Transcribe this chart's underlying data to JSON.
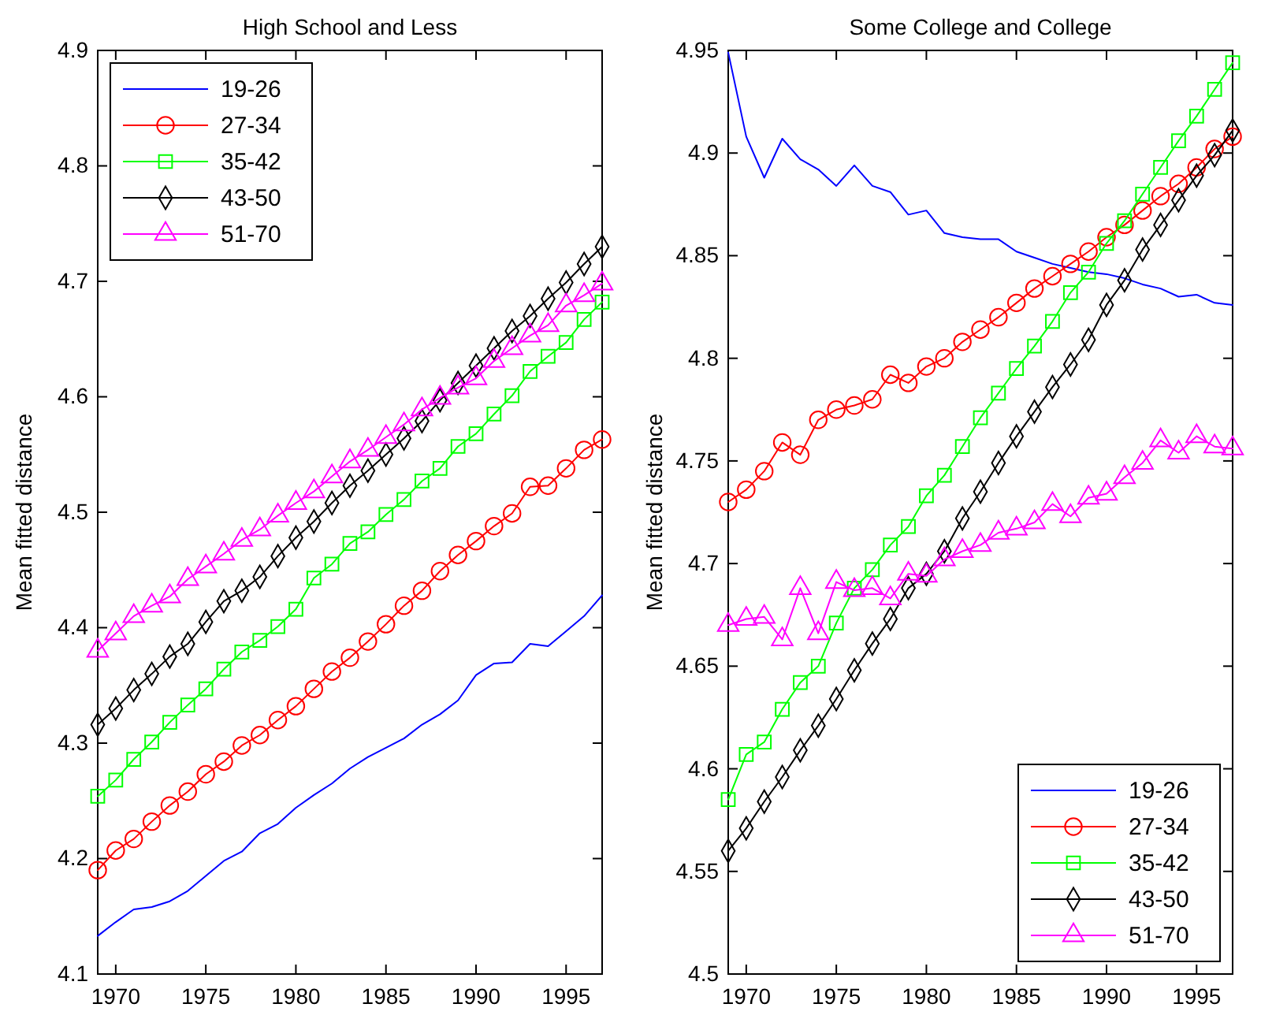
{
  "chart_data": [
    {
      "type": "line",
      "title": "High School and Less",
      "ylabel": "Mean fitted distance",
      "legend": "top left",
      "xlim": [
        1969,
        1997
      ],
      "xticks": [
        1970,
        1975,
        1980,
        1985,
        1990,
        1995
      ],
      "ylim": [
        4.1,
        4.9
      ],
      "yticks": [
        4.1,
        4.2,
        4.3,
        4.4,
        4.5,
        4.6,
        4.7,
        4.8,
        4.9
      ],
      "x": [
        1969,
        1970,
        1971,
        1972,
        1973,
        1974,
        1975,
        1976,
        1977,
        1978,
        1979,
        1980,
        1981,
        1982,
        1983,
        1984,
        1985,
        1986,
        1987,
        1988,
        1989,
        1990,
        1991,
        1992,
        1993,
        1994,
        1995,
        1996,
        1997
      ],
      "series": [
        {
          "name": "19-26",
          "color": "#0000ff",
          "marker": "none",
          "values": [
            4.133,
            4.145,
            4.156,
            4.158,
            4.163,
            4.172,
            4.185,
            4.198,
            4.206,
            4.222,
            4.23,
            4.244,
            4.255,
            4.265,
            4.278,
            4.288,
            4.296,
            4.304,
            4.316,
            4.325,
            4.337,
            4.359,
            4.369,
            4.37,
            4.386,
            4.384,
            4.397,
            4.41,
            4.428
          ]
        },
        {
          "name": "27-34",
          "color": "#ff0000",
          "marker": "circle",
          "values": [
            4.19,
            4.207,
            4.217,
            4.232,
            4.246,
            4.258,
            4.273,
            4.284,
            4.298,
            4.307,
            4.32,
            4.332,
            4.347,
            4.362,
            4.374,
            4.388,
            4.403,
            4.419,
            4.432,
            4.449,
            4.463,
            4.475,
            4.488,
            4.499,
            4.522,
            4.523,
            4.538,
            4.554,
            4.563
          ]
        },
        {
          "name": "35-42",
          "color": "#00ff00",
          "marker": "square",
          "values": [
            4.254,
            4.268,
            4.286,
            4.301,
            4.318,
            4.333,
            4.347,
            4.364,
            4.379,
            4.389,
            4.401,
            4.416,
            4.443,
            4.455,
            4.473,
            4.483,
            4.498,
            4.511,
            4.527,
            4.538,
            4.557,
            4.568,
            4.585,
            4.601,
            4.622,
            4.635,
            4.647,
            4.667,
            4.682
          ]
        },
        {
          "name": "43-50",
          "color": "#000000",
          "marker": "diamond",
          "values": [
            4.316,
            4.33,
            4.346,
            4.36,
            4.375,
            4.386,
            4.405,
            4.423,
            4.432,
            4.444,
            4.462,
            4.478,
            4.492,
            4.508,
            4.523,
            4.536,
            4.55,
            4.564,
            4.579,
            4.597,
            4.612,
            4.627,
            4.642,
            4.657,
            4.67,
            4.685,
            4.699,
            4.715,
            4.73
          ]
        },
        {
          "name": "51-70",
          "color": "#ff00ff",
          "marker": "triangle",
          "values": [
            4.38,
            4.395,
            4.41,
            4.419,
            4.427,
            4.442,
            4.453,
            4.464,
            4.476,
            4.485,
            4.497,
            4.508,
            4.518,
            4.531,
            4.544,
            4.554,
            4.565,
            4.576,
            4.589,
            4.599,
            4.608,
            4.616,
            4.631,
            4.642,
            4.653,
            4.662,
            4.679,
            4.688,
            4.698
          ]
        }
      ]
    },
    {
      "type": "line",
      "title": "Some College and College",
      "ylabel": "Mean fitted distance",
      "legend": "bottom right",
      "xlim": [
        1969,
        1997
      ],
      "xticks": [
        1970,
        1975,
        1980,
        1985,
        1990,
        1995
      ],
      "ylim": [
        4.5,
        4.95
      ],
      "yticks": [
        4.5,
        4.55,
        4.6,
        4.65,
        4.7,
        4.75,
        4.8,
        4.85,
        4.9,
        4.95
      ],
      "x": [
        1969,
        1970,
        1971,
        1972,
        1973,
        1974,
        1975,
        1976,
        1977,
        1978,
        1979,
        1980,
        1981,
        1982,
        1983,
        1984,
        1985,
        1986,
        1987,
        1988,
        1989,
        1990,
        1991,
        1992,
        1993,
        1994,
        1995,
        1996,
        1997
      ],
      "series": [
        {
          "name": "19-26",
          "color": "#0000ff",
          "marker": "none",
          "values": [
            4.949,
            4.908,
            4.888,
            4.907,
            4.897,
            4.892,
            4.884,
            4.894,
            4.884,
            4.881,
            4.87,
            4.872,
            4.861,
            4.859,
            4.858,
            4.858,
            4.852,
            4.849,
            4.846,
            4.844,
            4.842,
            4.841,
            4.839,
            4.836,
            4.834,
            4.83,
            4.831,
            4.827,
            4.826
          ]
        },
        {
          "name": "27-34",
          "color": "#ff0000",
          "marker": "circle",
          "values": [
            4.73,
            4.736,
            4.745,
            4.759,
            4.753,
            4.77,
            4.775,
            4.777,
            4.78,
            4.792,
            4.788,
            4.796,
            4.8,
            4.808,
            4.814,
            4.82,
            4.827,
            4.834,
            4.84,
            4.846,
            4.852,
            4.859,
            4.865,
            4.872,
            4.879,
            4.885,
            4.893,
            4.902,
            4.908
          ]
        },
        {
          "name": "35-42",
          "color": "#00ff00",
          "marker": "square",
          "values": [
            4.585,
            4.607,
            4.613,
            4.629,
            4.642,
            4.65,
            4.671,
            4.688,
            4.697,
            4.709,
            4.718,
            4.733,
            4.743,
            4.757,
            4.771,
            4.783,
            4.795,
            4.806,
            4.818,
            4.832,
            4.842,
            4.856,
            4.867,
            4.88,
            4.893,
            4.906,
            4.918,
            4.931,
            4.944
          ]
        },
        {
          "name": "43-50",
          "color": "#000000",
          "marker": "diamond",
          "values": [
            4.56,
            4.571,
            4.584,
            4.596,
            4.609,
            4.621,
            4.634,
            4.648,
            4.661,
            4.673,
            4.688,
            4.695,
            4.706,
            4.722,
            4.735,
            4.749,
            4.762,
            4.774,
            4.786,
            4.797,
            4.809,
            4.826,
            4.838,
            4.853,
            4.865,
            4.877,
            4.889,
            4.899,
            4.911
          ]
        },
        {
          "name": "51-70",
          "color": "#ff00ff",
          "marker": "triangle",
          "values": [
            4.67,
            4.673,
            4.674,
            4.663,
            4.688,
            4.666,
            4.691,
            4.687,
            4.688,
            4.683,
            4.695,
            4.694,
            4.702,
            4.706,
            4.709,
            4.715,
            4.717,
            4.72,
            4.729,
            4.723,
            4.732,
            4.734,
            4.742,
            4.749,
            4.76,
            4.754,
            4.762,
            4.757,
            4.756
          ]
        }
      ]
    }
  ]
}
